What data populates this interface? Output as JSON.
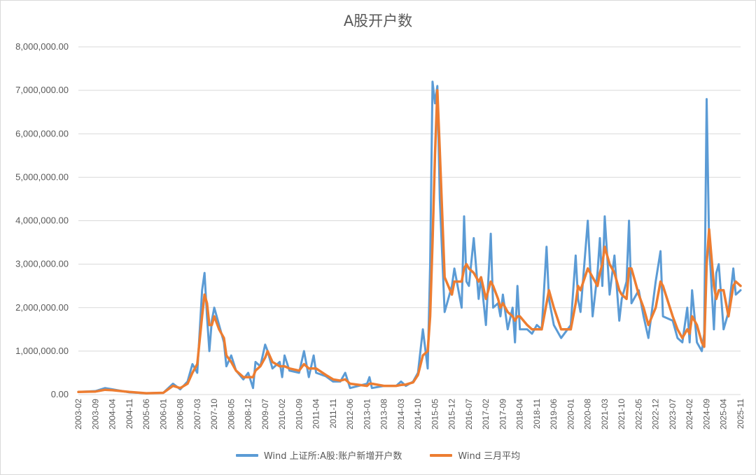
{
  "chart_data": {
    "type": "line",
    "title": "A股开户数",
    "xlabel": "",
    "ylabel": "",
    "ylim": [
      0,
      8000000
    ],
    "yticks": [
      "0.00",
      "1,000,000.00",
      "2,000,000.00",
      "3,000,000.00",
      "4,000,000.00",
      "5,000,000.00",
      "6,000,000.00",
      "7,000,000.00",
      "8,000,000.00"
    ],
    "grid": true,
    "legend_position": "bottom",
    "x_tick_labels": [
      "2003-02",
      "2003-09",
      "2004-04",
      "2004-11",
      "2005-06",
      "2006-01",
      "2006-08",
      "2007-03",
      "2007-10",
      "2008-05",
      "2008-12",
      "2009-07",
      "2010-02",
      "2010-09",
      "2011-04",
      "2011-11",
      "2012-06",
      "2013-01",
      "2013-08",
      "2014-03",
      "2014-10",
      "2015-05",
      "2015-12",
      "2016-07",
      "2017-02",
      "2017-09",
      "2018-04",
      "2018-11",
      "2019-06",
      "2020-01",
      "2020-08",
      "2021-03",
      "2021-10",
      "2022-05",
      "2022-12",
      "2023-07",
      "2024-02",
      "2024-09",
      "2025-04",
      "2025-11"
    ],
    "x_start": "2003-02",
    "x_end": "2025-11",
    "series": [
      {
        "name": "Wind 上证所:A股:账户新增开户数",
        "color": "#5B9BD5",
        "points": [
          [
            "2003-02",
            60000
          ],
          [
            "2003-09",
            80000
          ],
          [
            "2004-01",
            150000
          ],
          [
            "2004-04",
            120000
          ],
          [
            "2004-11",
            50000
          ],
          [
            "2005-06",
            30000
          ],
          [
            "2006-01",
            40000
          ],
          [
            "2006-05",
            250000
          ],
          [
            "2006-08",
            120000
          ],
          [
            "2006-11",
            300000
          ],
          [
            "2007-01",
            700000
          ],
          [
            "2007-03",
            500000
          ],
          [
            "2007-05",
            2400000
          ],
          [
            "2007-06",
            2800000
          ],
          [
            "2007-07",
            1800000
          ],
          [
            "2007-08",
            1000000
          ],
          [
            "2007-09",
            1700000
          ],
          [
            "2007-10",
            2000000
          ],
          [
            "2007-12",
            1600000
          ],
          [
            "2008-02",
            1200000
          ],
          [
            "2008-03",
            650000
          ],
          [
            "2008-05",
            900000
          ],
          [
            "2008-07",
            550000
          ],
          [
            "2008-10",
            350000
          ],
          [
            "2008-12",
            500000
          ],
          [
            "2009-02",
            150000
          ],
          [
            "2009-03",
            750000
          ],
          [
            "2009-05",
            650000
          ],
          [
            "2009-07",
            1150000
          ],
          [
            "2009-08",
            1000000
          ],
          [
            "2009-10",
            600000
          ],
          [
            "2010-01",
            750000
          ],
          [
            "2010-02",
            400000
          ],
          [
            "2010-03",
            900000
          ],
          [
            "2010-05",
            550000
          ],
          [
            "2010-09",
            500000
          ],
          [
            "2010-11",
            1000000
          ],
          [
            "2011-01",
            400000
          ],
          [
            "2011-03",
            900000
          ],
          [
            "2011-04",
            500000
          ],
          [
            "2011-08",
            420000
          ],
          [
            "2011-11",
            300000
          ],
          [
            "2012-02",
            300000
          ],
          [
            "2012-04",
            500000
          ],
          [
            "2012-06",
            150000
          ],
          [
            "2013-01",
            250000
          ],
          [
            "2013-02",
            400000
          ],
          [
            "2013-03",
            150000
          ],
          [
            "2013-08",
            200000
          ],
          [
            "2014-01",
            200000
          ],
          [
            "2014-03",
            300000
          ],
          [
            "2014-05",
            200000
          ],
          [
            "2014-08",
            300000
          ],
          [
            "2014-10",
            500000
          ],
          [
            "2014-12",
            1500000
          ],
          [
            "2015-02",
            600000
          ],
          [
            "2015-03",
            3000000
          ],
          [
            "2015-04",
            7200000
          ],
          [
            "2015-05",
            6700000
          ],
          [
            "2015-06",
            7100000
          ],
          [
            "2015-07",
            4500000
          ],
          [
            "2015-09",
            1900000
          ],
          [
            "2015-12",
            2500000
          ],
          [
            "2016-01",
            2900000
          ],
          [
            "2016-04",
            2000000
          ],
          [
            "2016-05",
            4100000
          ],
          [
            "2016-06",
            2600000
          ],
          [
            "2016-07",
            2500000
          ],
          [
            "2016-09",
            3600000
          ],
          [
            "2016-11",
            2200000
          ],
          [
            "2016-12",
            2700000
          ],
          [
            "2017-02",
            1600000
          ],
          [
            "2017-04",
            3700000
          ],
          [
            "2017-05",
            2000000
          ],
          [
            "2017-07",
            2100000
          ],
          [
            "2017-08",
            1800000
          ],
          [
            "2017-09",
            2300000
          ],
          [
            "2017-11",
            1500000
          ],
          [
            "2018-01",
            2000000
          ],
          [
            "2018-02",
            1200000
          ],
          [
            "2018-03",
            2500000
          ],
          [
            "2018-04",
            1500000
          ],
          [
            "2018-07",
            1500000
          ],
          [
            "2018-09",
            1400000
          ],
          [
            "2018-11",
            1600000
          ],
          [
            "2019-01",
            1500000
          ],
          [
            "2019-03",
            3400000
          ],
          [
            "2019-04",
            2200000
          ],
          [
            "2019-06",
            1600000
          ],
          [
            "2019-09",
            1300000
          ],
          [
            "2020-01",
            1600000
          ],
          [
            "2020-03",
            3200000
          ],
          [
            "2020-04",
            2200000
          ],
          [
            "2020-05",
            1900000
          ],
          [
            "2020-08",
            4000000
          ],
          [
            "2020-10",
            1800000
          ],
          [
            "2020-12",
            2800000
          ],
          [
            "2021-01",
            3600000
          ],
          [
            "2021-02",
            2500000
          ],
          [
            "2021-03",
            4100000
          ],
          [
            "2021-05",
            2300000
          ],
          [
            "2021-07",
            3200000
          ],
          [
            "2021-09",
            1700000
          ],
          [
            "2021-10",
            2200000
          ],
          [
            "2021-12",
            2600000
          ],
          [
            "2022-01",
            4000000
          ],
          [
            "2022-02",
            2100000
          ],
          [
            "2022-05",
            2400000
          ],
          [
            "2022-07",
            1800000
          ],
          [
            "2022-09",
            1300000
          ],
          [
            "2022-12",
            2600000
          ],
          [
            "2023-02",
            3300000
          ],
          [
            "2023-03",
            1800000
          ],
          [
            "2023-07",
            1700000
          ],
          [
            "2023-09",
            1300000
          ],
          [
            "2023-11",
            1200000
          ],
          [
            "2024-01",
            2000000
          ],
          [
            "2024-02",
            1200000
          ],
          [
            "2024-03",
            2400000
          ],
          [
            "2024-05",
            1200000
          ],
          [
            "2024-07",
            1000000
          ],
          [
            "2024-08",
            1400000
          ],
          [
            "2024-09",
            6800000
          ],
          [
            "2024-10",
            3500000
          ],
          [
            "2024-12",
            1500000
          ],
          [
            "2025-01",
            2800000
          ],
          [
            "2025-02",
            3000000
          ],
          [
            "2025-04",
            1500000
          ],
          [
            "2025-06",
            1900000
          ],
          [
            "2025-08",
            2900000
          ],
          [
            "2025-09",
            2300000
          ],
          [
            "2025-11",
            2400000
          ]
        ]
      },
      {
        "name": "Wind 三月平均",
        "color": "#ED7D31",
        "points": [
          [
            "2003-02",
            60000
          ],
          [
            "2003-09",
            70000
          ],
          [
            "2004-01",
            110000
          ],
          [
            "2004-04",
            100000
          ],
          [
            "2004-11",
            60000
          ],
          [
            "2005-06",
            30000
          ],
          [
            "2006-01",
            40000
          ],
          [
            "2006-05",
            200000
          ],
          [
            "2006-08",
            150000
          ],
          [
            "2006-11",
            250000
          ],
          [
            "2007-01",
            500000
          ],
          [
            "2007-03",
            700000
          ],
          [
            "2007-05",
            1800000
          ],
          [
            "2007-06",
            2300000
          ],
          [
            "2007-07",
            2100000
          ],
          [
            "2007-08",
            1600000
          ],
          [
            "2007-09",
            1600000
          ],
          [
            "2007-10",
            1800000
          ],
          [
            "2007-12",
            1500000
          ],
          [
            "2008-02",
            1300000
          ],
          [
            "2008-03",
            900000
          ],
          [
            "2008-05",
            750000
          ],
          [
            "2008-07",
            550000
          ],
          [
            "2008-10",
            400000
          ],
          [
            "2008-12",
            400000
          ],
          [
            "2009-02",
            400000
          ],
          [
            "2009-03",
            550000
          ],
          [
            "2009-05",
            650000
          ],
          [
            "2009-07",
            850000
          ],
          [
            "2009-08",
            1000000
          ],
          [
            "2009-10",
            750000
          ],
          [
            "2010-01",
            650000
          ],
          [
            "2010-02",
            650000
          ],
          [
            "2010-03",
            650000
          ],
          [
            "2010-05",
            600000
          ],
          [
            "2010-09",
            550000
          ],
          [
            "2010-11",
            700000
          ],
          [
            "2011-01",
            600000
          ],
          [
            "2011-03",
            600000
          ],
          [
            "2011-04",
            600000
          ],
          [
            "2011-08",
            450000
          ],
          [
            "2011-11",
            350000
          ],
          [
            "2012-02",
            320000
          ],
          [
            "2012-04",
            350000
          ],
          [
            "2012-06",
            250000
          ],
          [
            "2013-01",
            200000
          ],
          [
            "2013-02",
            250000
          ],
          [
            "2013-03",
            250000
          ],
          [
            "2013-08",
            200000
          ],
          [
            "2014-01",
            200000
          ],
          [
            "2014-03",
            220000
          ],
          [
            "2014-05",
            230000
          ],
          [
            "2014-08",
            280000
          ],
          [
            "2014-10",
            450000
          ],
          [
            "2014-12",
            900000
          ],
          [
            "2015-02",
            1000000
          ],
          [
            "2015-03",
            1800000
          ],
          [
            "2015-04",
            3500000
          ],
          [
            "2015-05",
            5500000
          ],
          [
            "2015-06",
            7000000
          ],
          [
            "2015-07",
            5600000
          ],
          [
            "2015-09",
            2700000
          ],
          [
            "2015-12",
            2300000
          ],
          [
            "2016-01",
            2600000
          ],
          [
            "2016-04",
            2600000
          ],
          [
            "2016-05",
            2900000
          ],
          [
            "2016-06",
            3000000
          ],
          [
            "2016-07",
            2900000
          ],
          [
            "2016-09",
            2800000
          ],
          [
            "2016-11",
            2600000
          ],
          [
            "2016-12",
            2700000
          ],
          [
            "2017-02",
            2200000
          ],
          [
            "2017-04",
            2600000
          ],
          [
            "2017-05",
            2500000
          ],
          [
            "2017-07",
            2200000
          ],
          [
            "2017-08",
            2000000
          ],
          [
            "2017-09",
            2100000
          ],
          [
            "2017-11",
            1900000
          ],
          [
            "2018-01",
            1800000
          ],
          [
            "2018-02",
            1700000
          ],
          [
            "2018-03",
            1800000
          ],
          [
            "2018-04",
            1800000
          ],
          [
            "2018-07",
            1600000
          ],
          [
            "2018-09",
            1500000
          ],
          [
            "2018-11",
            1500000
          ],
          [
            "2019-01",
            1500000
          ],
          [
            "2019-03",
            2100000
          ],
          [
            "2019-04",
            2400000
          ],
          [
            "2019-06",
            2000000
          ],
          [
            "2019-09",
            1500000
          ],
          [
            "2020-01",
            1500000
          ],
          [
            "2020-03",
            2100000
          ],
          [
            "2020-04",
            2500000
          ],
          [
            "2020-05",
            2400000
          ],
          [
            "2020-08",
            2900000
          ],
          [
            "2020-10",
            2700000
          ],
          [
            "2020-12",
            2500000
          ],
          [
            "2021-01",
            2800000
          ],
          [
            "2021-02",
            3000000
          ],
          [
            "2021-03",
            3400000
          ],
          [
            "2021-05",
            3000000
          ],
          [
            "2021-07",
            2800000
          ],
          [
            "2021-09",
            2400000
          ],
          [
            "2021-10",
            2300000
          ],
          [
            "2021-12",
            2200000
          ],
          [
            "2022-01",
            2900000
          ],
          [
            "2022-02",
            2900000
          ],
          [
            "2022-05",
            2300000
          ],
          [
            "2022-07",
            2000000
          ],
          [
            "2022-09",
            1600000
          ],
          [
            "2022-12",
            2000000
          ],
          [
            "2023-02",
            2600000
          ],
          [
            "2023-03",
            2500000
          ],
          [
            "2023-07",
            1800000
          ],
          [
            "2023-09",
            1500000
          ],
          [
            "2023-11",
            1300000
          ],
          [
            "2024-01",
            1500000
          ],
          [
            "2024-02",
            1400000
          ],
          [
            "2024-03",
            1800000
          ],
          [
            "2024-05",
            1600000
          ],
          [
            "2024-07",
            1200000
          ],
          [
            "2024-08",
            1100000
          ],
          [
            "2024-09",
            3000000
          ],
          [
            "2024-10",
            3800000
          ],
          [
            "2024-12",
            2500000
          ],
          [
            "2025-01",
            2200000
          ],
          [
            "2025-02",
            2400000
          ],
          [
            "2025-04",
            2400000
          ],
          [
            "2025-06",
            1800000
          ],
          [
            "2025-08",
            2500000
          ],
          [
            "2025-09",
            2600000
          ],
          [
            "2025-11",
            2500000
          ]
        ]
      }
    ]
  }
}
